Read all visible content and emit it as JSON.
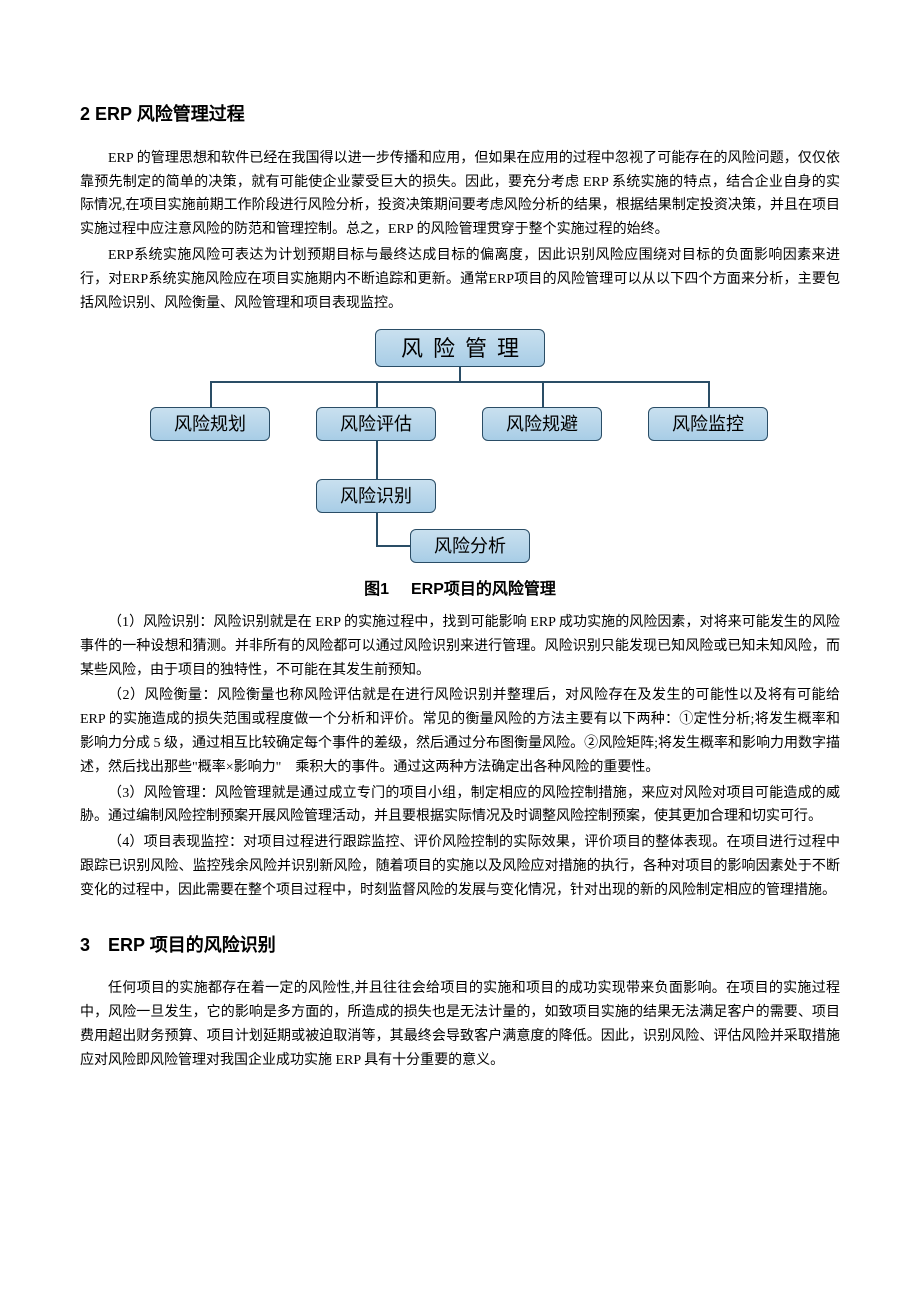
{
  "section2": {
    "heading": "2 ERP 风险管理过程",
    "para1": "ERP 的管理思想和软件已经在我国得以进一步传播和应用，但如果在应用的过程中忽视了可能存在的风险问题，仅仅依靠预先制定的简单的决策，就有可能使企业蒙受巨大的损失。因此，要充分考虑 ERP 系统实施的特点，结合企业自身的实际情况,在项目实施前期工作阶段进行风险分析，投资决策期间要考虑风险分析的结果，根据结果制定投资决策，并且在项目实施过程中应注意风险的防范和管理控制。总之，ERP 的风险管理贯穿于整个实施过程的始终。",
    "para2": "ERP系统实施风险可表达为计划预期目标与最终达成目标的偏离度，因此识别风险应围绕对目标的负面影响因素来进行，对ERP系统实施风险应在项目实施期内不断追踪和更新。通常ERP项目的风险管理可以从以下四个方面来分析，主要包括风险识别、风险衡量、风险管理和项目表现监控。"
  },
  "diagram": {
    "root": "风险管理",
    "level1": [
      "风险规划",
      "风险评估",
      "风险规避",
      "风险监控"
    ],
    "level2": "风险识别",
    "level3": "风险分析",
    "node_fill_top": "#c9e0ef",
    "node_fill_bottom": "#a8cde6",
    "node_border": "#2a4d66",
    "connector_color": "#2a4d66",
    "root_fontsize": 22,
    "child_fontsize": 18
  },
  "figure": {
    "num": "图1",
    "caption": "ERP项目的风险管理"
  },
  "items": {
    "p1": "（1）风险识别：风险识别就是在 ERP 的实施过程中，找到可能影响 ERP 成功实施的风险因素，对将来可能发生的风险事件的一种设想和猜测。并非所有的风险都可以通过风险识别来进行管理。风险识别只能发现已知风险或已知未知风险，而某些风险，由于项目的独特性，不可能在其发生前预知。",
    "p2": "（2）风险衡量：风险衡量也称风险评估就是在进行风险识别并整理后，对风险存在及发生的可能性以及将有可能给 ERP 的实施造成的损失范围或程度做一个分析和评价。常见的衡量风险的方法主要有以下两种：①定性分析;将发生概率和影响力分成 5 级，通过相互比较确定每个事件的差级，然后通过分布图衡量风险。②风险矩阵;将发生概率和影响力用数字描述，然后找出那些\"概率×影响力\"　乘积大的事件。通过这两种方法确定出各种风险的重要性。",
    "p3": "（3）风险管理：风险管理就是通过成立专门的项目小组，制定相应的风险控制措施，来应对风险对项目可能造成的威胁。通过编制风险控制预案开展风险管理活动，并且要根据实际情况及时调整风险控制预案，使其更加合理和切实可行。",
    "p4": "（4）项目表现监控：对项目过程进行跟踪监控、评价风险控制的实际效果，评价项目的整体表现。在项目进行过程中跟踪已识别风险、监控残余风险并识别新风险，随着项目的实施以及风险应对措施的执行，各种对项目的影响因素处于不断变化的过程中，因此需要在整个项目过程中，时刻监督风险的发展与变化情况，针对出现的新的风险制定相应的管理措施。"
  },
  "section3": {
    "heading": "3　ERP 项目的风险识别",
    "para1": "任何项目的实施都存在着一定的风险性,并且往往会给项目的实施和项目的成功实现带来负面影响。在项目的实施过程中，风险一旦发生，它的影响是多方面的，所造成的损失也是无法计量的，如致项目实施的结果无法满足客户的需要、项目费用超出财务预算、项目计划延期或被迫取消等，其最终会导致客户满意度的降低。因此，识别风险、评估风险并采取措施应对风险即风险管理对我国企业成功实施 ERP 具有十分重要的意义。"
  }
}
